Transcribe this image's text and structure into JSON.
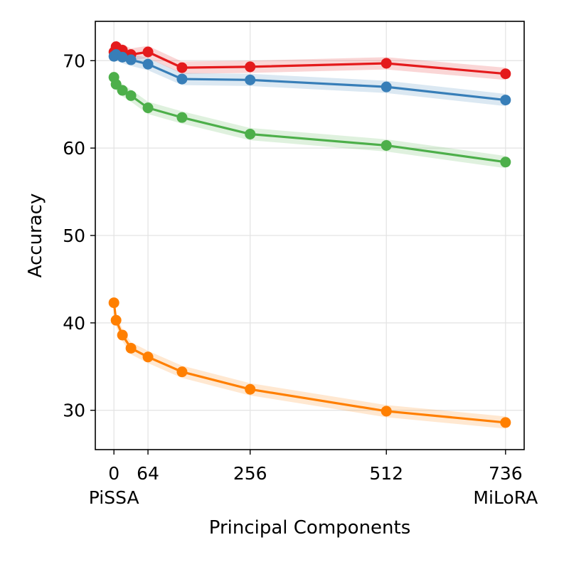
{
  "chart_data": {
    "type": "line",
    "title": "",
    "xlabel": "Principal Components",
    "ylabel": "Accuracy",
    "xlim": [
      -35,
      771
    ],
    "ylim": [
      25.5,
      74.5
    ],
    "grid": true,
    "x_ticks": [
      0,
      64,
      256,
      512,
      736
    ],
    "x_tick_labels": [
      "0",
      "64",
      "256",
      "512",
      "736"
    ],
    "x_tick_sublabels": [
      {
        "x": 0,
        "text": "PiSSA"
      },
      {
        "x": 736,
        "text": "MiLoRA"
      }
    ],
    "y_ticks": [
      30,
      40,
      50,
      60,
      70
    ],
    "y_tick_labels": [
      "30",
      "40",
      "50",
      "60",
      "70"
    ],
    "x": [
      0,
      4,
      16,
      32,
      64,
      128,
      256,
      512,
      736
    ],
    "series": [
      {
        "name": "red",
        "color": "#e41a1c",
        "values": [
          71.0,
          71.6,
          71.2,
          70.7,
          71.0,
          69.2,
          69.3,
          69.7,
          68.5
        ],
        "band": 0.7
      },
      {
        "name": "blue",
        "color": "#377eb8",
        "values": [
          70.5,
          70.7,
          70.4,
          70.1,
          69.6,
          67.9,
          67.8,
          67.0,
          65.5
        ],
        "band": 0.7
      },
      {
        "name": "green",
        "color": "#4daf4a",
        "values": [
          68.1,
          67.3,
          66.6,
          66.0,
          64.6,
          63.5,
          61.6,
          60.3,
          58.4
        ],
        "band": 0.7
      },
      {
        "name": "orange",
        "color": "#ff7f00",
        "values": [
          42.3,
          40.3,
          38.6,
          37.1,
          36.1,
          34.4,
          32.4,
          29.9,
          28.6
        ],
        "band": 0.7
      }
    ]
  }
}
